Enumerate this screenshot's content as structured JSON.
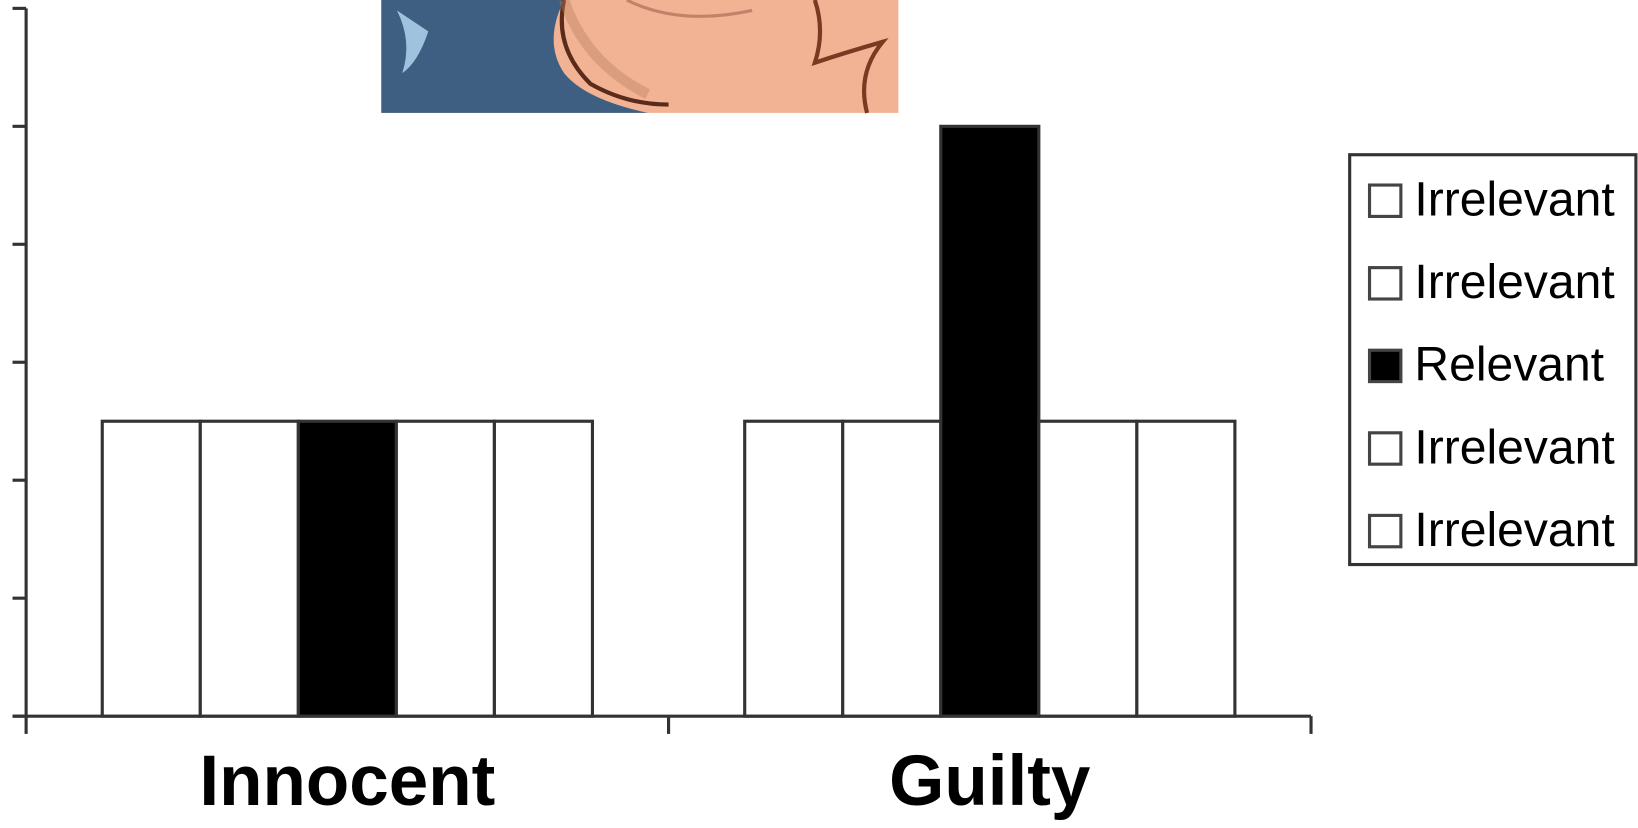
{
  "chart_data": {
    "type": "bar",
    "categories": [
      "Innocent",
      "Guilty"
    ],
    "series": [
      {
        "name": "Irrelevant",
        "color": "#ffffff",
        "values": [
          2.5,
          2.5
        ]
      },
      {
        "name": "Irrelevant",
        "color": "#ffffff",
        "values": [
          2.5,
          2.5
        ]
      },
      {
        "name": "Relevant",
        "color": "#000000",
        "values": [
          2.5,
          5
        ]
      },
      {
        "name": "Irrelevant",
        "color": "#ffffff",
        "values": [
          2.5,
          2.5
        ]
      },
      {
        "name": "Irrelevant",
        "color": "#ffffff",
        "values": [
          2.5,
          2.5
        ]
      }
    ],
    "ylim": [
      0,
      6
    ],
    "yticks": [
      0,
      1,
      2,
      3,
      4,
      5,
      6
    ],
    "ytick_labels": false,
    "grid": false,
    "legend": "right"
  }
}
